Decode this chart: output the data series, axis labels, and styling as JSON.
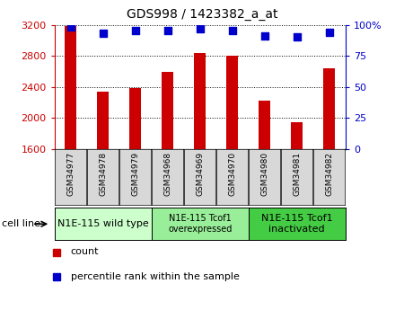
{
  "title": "GDS998 / 1423382_a_at",
  "categories": [
    "GSM34977",
    "GSM34978",
    "GSM34979",
    "GSM34968",
    "GSM34969",
    "GSM34970",
    "GSM34980",
    "GSM34981",
    "GSM34982"
  ],
  "counts": [
    3180,
    2340,
    2380,
    2590,
    2840,
    2800,
    2220,
    1940,
    2640
  ],
  "percentiles": [
    98,
    93,
    95,
    95,
    97,
    95,
    91,
    90,
    94
  ],
  "ylim_left": [
    1600,
    3200
  ],
  "ylim_right": [
    0,
    100
  ],
  "yticks_left": [
    1600,
    2000,
    2400,
    2800,
    3200
  ],
  "yticks_right": [
    0,
    25,
    50,
    75,
    100
  ],
  "ytick_labels_right": [
    "0",
    "25",
    "50",
    "75",
    "100%"
  ],
  "bar_color": "#cc0000",
  "dot_color": "#0000cc",
  "bar_width": 0.35,
  "dot_size": 40,
  "left_axis_color": "#cc0000",
  "right_axis_color": "#0000cc",
  "group_colors": [
    "#ccffcc",
    "#99ee99",
    "#44cc44"
  ],
  "group_labels": [
    "N1E-115 wild type",
    "N1E-115 Tcof1\noverexpressed",
    "N1E-115 Tcof1\ninactivated"
  ],
  "group_starts": [
    0,
    3,
    6
  ],
  "group_ends": [
    3,
    6,
    9
  ],
  "group_fontsizes": [
    8,
    7,
    8
  ],
  "cell_line_label": "cell line",
  "legend_count_label": "count",
  "legend_percentile_label": "percentile rank within the sample"
}
